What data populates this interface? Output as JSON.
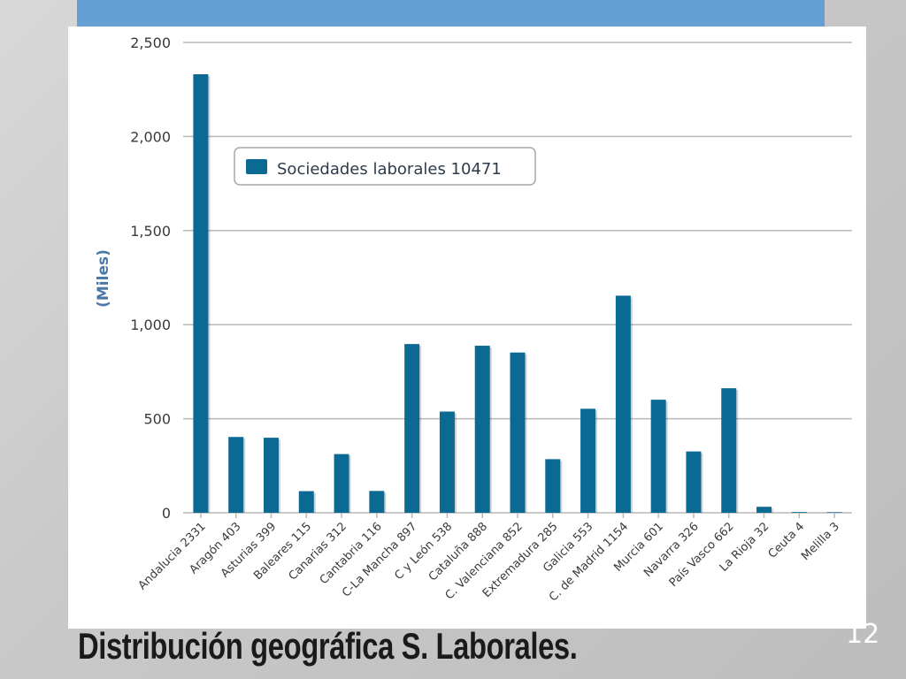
{
  "slide": {
    "title": "Distribución geográfica S. Laborales.",
    "number": "12"
  },
  "colors": {
    "bar": "#0b6a94",
    "top_bar": "#659fd4",
    "axis_label": "#4a78a8"
  },
  "chart_data": {
    "type": "bar",
    "ylabel": "(Miles)",
    "ylim": [
      0,
      2500
    ],
    "yticks": [
      0,
      500,
      1000,
      1500,
      2000,
      2500
    ],
    "ytick_labels": [
      "0",
      "500",
      "1,000",
      "1,500",
      "2,000",
      "2,500"
    ],
    "grid": true,
    "legend": {
      "position": "top-left",
      "entries": [
        "Sociedades laborales 10471"
      ]
    },
    "categories": [
      "Andalucia 2331",
      "Aragón 403",
      "Asturias 399",
      "Baleares 115",
      "Canarias 312",
      "Cantabria 116",
      "C-La Mancha 897",
      "C y León 538",
      "Cataluña 888",
      "C. Valenciana 852",
      "Extremadura 285",
      "Galicia 553",
      "C. de Madrid 1154",
      "Murcia 601",
      "Navarra 326",
      "País Vasco 662",
      "La Rioja 32",
      "Ceuta 4",
      "Melilla 3"
    ],
    "values": [
      2331,
      403,
      399,
      115,
      312,
      116,
      897,
      538,
      888,
      852,
      285,
      553,
      1154,
      601,
      326,
      662,
      32,
      4,
      3
    ]
  }
}
